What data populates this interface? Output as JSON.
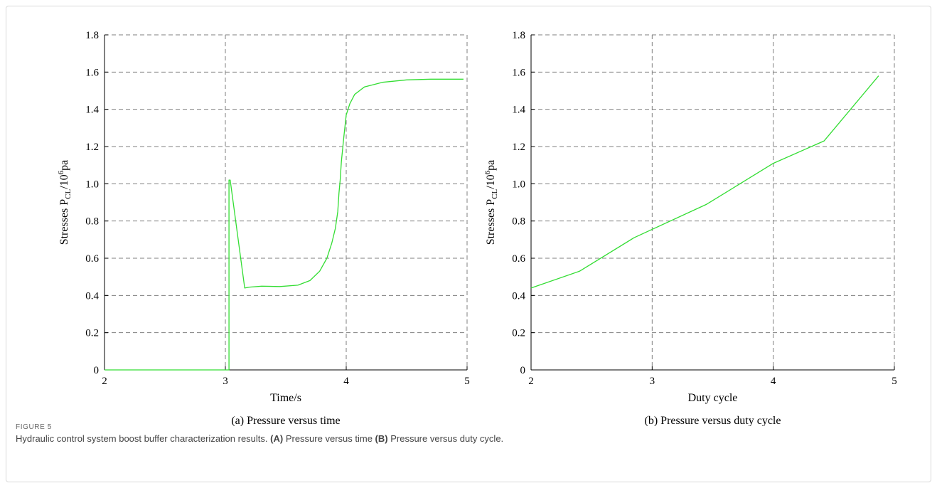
{
  "figure": {
    "label": "FIGURE 5",
    "caption_prefix": "Hydraulic control system boost buffer characterization results.",
    "caption_a_tag": "(A)",
    "caption_a_text": "Pressure versus time",
    "caption_b_tag": "(B)",
    "caption_b_text": "Pressure versus duty cycle."
  },
  "colors": {
    "line": "#33dd33",
    "grid": "#7f7f7f",
    "axis": "#000000"
  },
  "chart_data": [
    {
      "type": "line",
      "subtitle": "(a) Pressure versus time",
      "xlabel": "Time/s",
      "ylabel": {
        "main": "Stresses P",
        "sub": "CL",
        "mid": "/10",
        "sup": "6",
        "tail": "pa"
      },
      "xlim": [
        2,
        5
      ],
      "ylim": [
        0,
        1.8
      ],
      "xticks": [
        2,
        3,
        4,
        5
      ],
      "yticks": [
        0,
        0.2,
        0.4,
        0.6,
        0.8,
        1.0,
        1.2,
        1.4,
        1.6,
        1.8
      ],
      "ytick_labels": [
        "0",
        "0.2",
        "0.4",
        "0.6",
        "0.8",
        "1.0",
        "1.2",
        "1.4",
        "1.6",
        "1.8"
      ],
      "grid": true,
      "series": [
        {
          "x": [
            2.0,
            3.0,
            3.02,
            3.03,
            3.03,
            3.04,
            3.16,
            3.2,
            3.3,
            3.45,
            3.6,
            3.7,
            3.78,
            3.84,
            3.88,
            3.91,
            3.93,
            3.94,
            3.95,
            3.96,
            3.98,
            4.0,
            4.03,
            4.07,
            4.15,
            4.3,
            4.5,
            4.7,
            4.9,
            4.97
          ],
          "y": [
            0.0,
            0.0,
            0.0,
            0.0,
            1.02,
            1.02,
            0.44,
            0.445,
            0.45,
            0.448,
            0.455,
            0.48,
            0.53,
            0.6,
            0.68,
            0.76,
            0.85,
            0.95,
            1.02,
            1.12,
            1.25,
            1.37,
            1.43,
            1.48,
            1.52,
            1.545,
            1.558,
            1.562,
            1.562,
            1.562
          ]
        }
      ]
    },
    {
      "type": "line",
      "subtitle": "(b) Pressure versus duty cycle",
      "xlabel": "Duty cycle",
      "ylabel": {
        "main": "Stresses P",
        "sub": "CL",
        "mid": "/10",
        "sup": "6",
        "tail": "pa"
      },
      "xlim": [
        2,
        5
      ],
      "ylim": [
        0,
        1.8
      ],
      "xticks": [
        2,
        3,
        4,
        5
      ],
      "yticks": [
        0,
        0.2,
        0.4,
        0.6,
        0.8,
        1.0,
        1.2,
        1.4,
        1.6,
        1.8
      ],
      "ytick_labels": [
        "0",
        "0.2",
        "0.4",
        "0.6",
        "0.8",
        "1.0",
        "1.2",
        "1.4",
        "1.6",
        "1.8"
      ],
      "grid": true,
      "series": [
        {
          "x": [
            2.0,
            2.4,
            2.85,
            3.45,
            4.0,
            4.42,
            4.87
          ],
          "y": [
            0.44,
            0.53,
            0.71,
            0.89,
            1.11,
            1.23,
            1.58
          ]
        }
      ]
    }
  ]
}
